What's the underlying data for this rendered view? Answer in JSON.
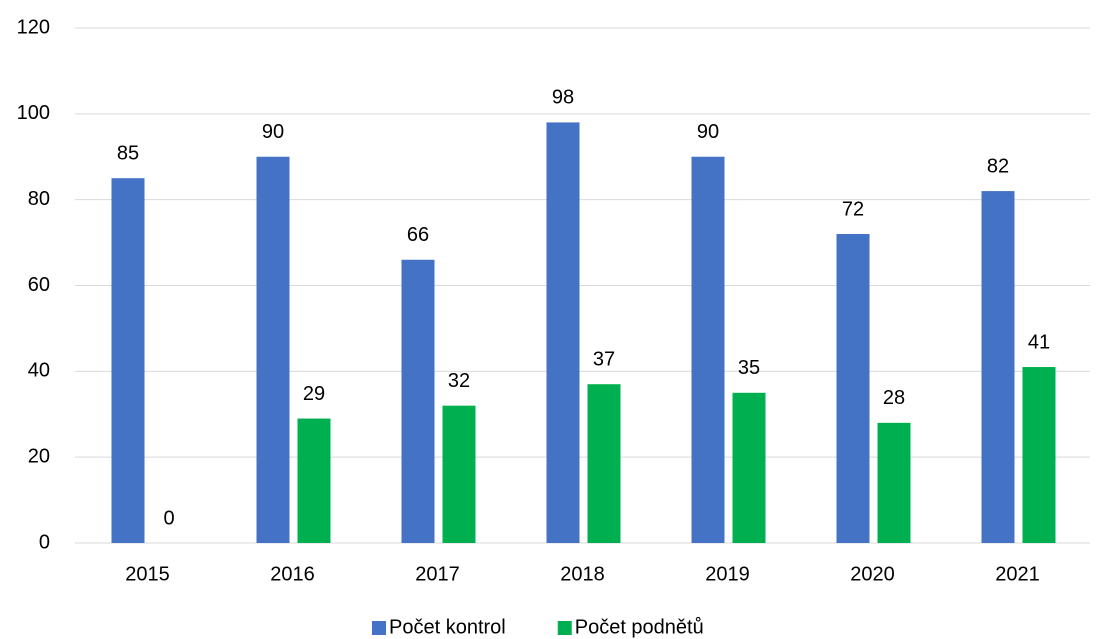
{
  "chart_data": {
    "type": "bar",
    "categories": [
      "2015",
      "2016",
      "2017",
      "2018",
      "2019",
      "2020",
      "2021"
    ],
    "series": [
      {
        "name": "Počet kontrol",
        "color": "#4472c4",
        "values": [
          85,
          90,
          66,
          98,
          90,
          72,
          82
        ]
      },
      {
        "name": "Počet podnětů",
        "color": "#00b050",
        "values": [
          0,
          29,
          32,
          37,
          35,
          28,
          41
        ]
      }
    ],
    "ylim": [
      0,
      120
    ],
    "yticks": [
      0,
      20,
      40,
      60,
      80,
      100,
      120
    ],
    "grid": true,
    "legend": "bottom"
  }
}
